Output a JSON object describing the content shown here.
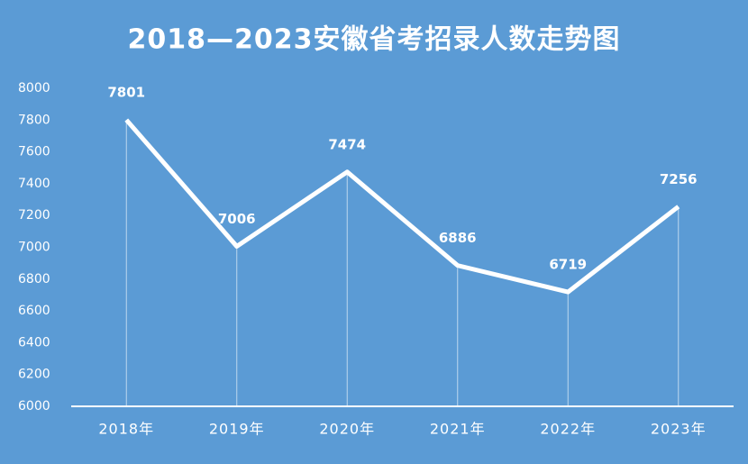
{
  "chart_data": {
    "type": "line",
    "title": "2018—2023安徽省考招录人数走势图",
    "categories": [
      "2018年",
      "2019年",
      "2020年",
      "2021年",
      "2022年",
      "2023年"
    ],
    "values": [
      7801,
      7006,
      7474,
      6886,
      6719,
      7256
    ],
    "color": "#ffffff",
    "ylim": [
      6000,
      8000
    ],
    "yticks": [
      6000,
      6200,
      6400,
      6600,
      6800,
      7000,
      7200,
      7400,
      7600,
      7800,
      8000
    ],
    "grid": false,
    "drop_lines": true,
    "data_labels": true
  }
}
